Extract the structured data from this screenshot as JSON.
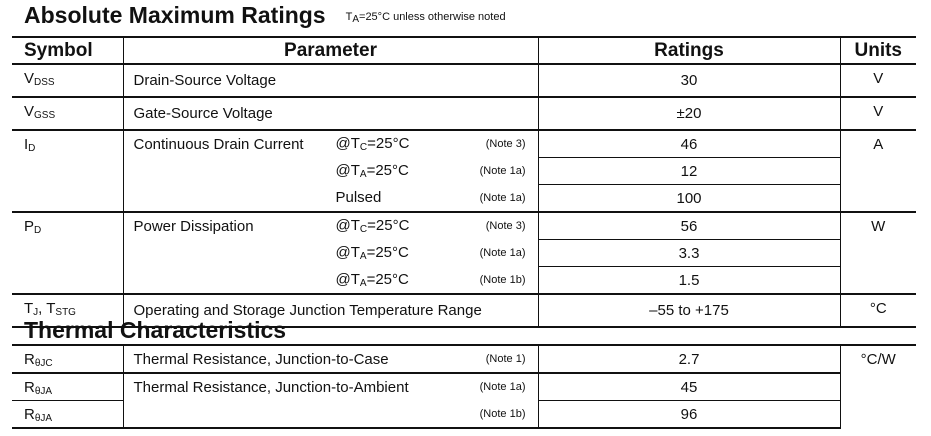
{
  "amr": {
    "title": "Absolute Maximum Ratings",
    "note": "TA=25°C unless otherwise noted",
    "note_base": "T",
    "note_sub": "A",
    "note_rest": "=25°C unless otherwise noted",
    "headers": {
      "symbol": "Symbol",
      "parameter": "Parameter",
      "ratings": "Ratings",
      "units": "Units"
    },
    "rows": [
      {
        "sym": "V",
        "sub": "DSS",
        "param": "Drain-Source Voltage",
        "rating": "30",
        "unit": "V"
      },
      {
        "sym": "V",
        "sub": "GSS",
        "param": "Gate-Source Voltage",
        "rating": "±20",
        "unit": "V"
      },
      {
        "sym": "I",
        "sub": "D",
        "param": "Continuous Drain Current",
        "unit": "A",
        "sub_rows": [
          {
            "cond": "@T",
            "cond_sub": "C",
            "cond_rest": "=25°C",
            "note": "(Note 3)",
            "rating": "46"
          },
          {
            "cond": "@T",
            "cond_sub": "A",
            "cond_rest": "=25°C",
            "note": "(Note 1a)",
            "rating": "12"
          },
          {
            "cond": "Pulsed",
            "note": "(Note 1a)",
            "rating": "100"
          }
        ]
      },
      {
        "sym": "P",
        "sub": "D",
        "param": "Power Dissipation",
        "unit": "W",
        "sub_rows": [
          {
            "cond": "@T",
            "cond_sub": "C",
            "cond_rest": "=25°C",
            "note": "(Note 3)",
            "rating": "56"
          },
          {
            "cond": "@T",
            "cond_sub": "A",
            "cond_rest": "=25°C",
            "note": "(Note 1a)",
            "rating": "3.3"
          },
          {
            "cond": "@T",
            "cond_sub": "A",
            "cond_rest": "=25°C",
            "note": "(Note 1b)",
            "rating": "1.5"
          }
        ]
      },
      {
        "sym": "T",
        "sub": "J",
        "sym2": ", T",
        "sub2": "STG",
        "param": "Operating and Storage Junction Temperature Range",
        "rating": "–55 to +175",
        "unit": "°C"
      }
    ]
  },
  "thermal": {
    "title": "Thermal Characteristics",
    "unit": "°C/W",
    "rows": [
      {
        "sym": "R",
        "sub": "θJC",
        "param": "Thermal Resistance, Junction-to-Case",
        "note": "(Note 1)",
        "rating": "2.7"
      },
      {
        "sym": "R",
        "sub": "θJA",
        "param": "Thermal Resistance, Junction-to-Ambient",
        "note": "(Note 1a)",
        "rating": "45"
      },
      {
        "sym": "R",
        "sub": "θJA",
        "param": "",
        "note": "(Note 1b)",
        "rating": "96"
      }
    ]
  }
}
